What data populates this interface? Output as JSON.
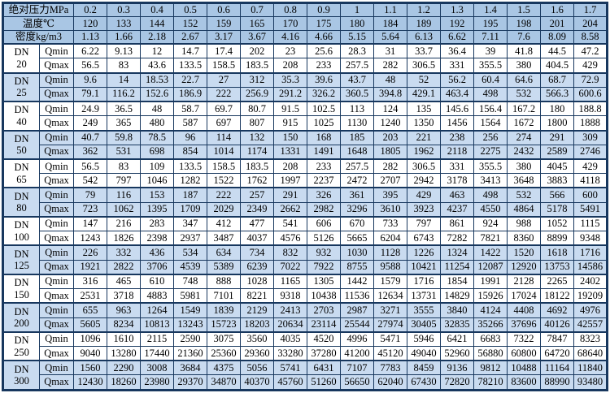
{
  "table": {
    "colors": {
      "border": "#17375e",
      "header_bg": "#a9c6e4",
      "block_bg": "#c9dbf0",
      "text": "#000000"
    },
    "dn_prefix": "DN",
    "qmin_label": "Qmin",
    "qmax_label": "Qmax",
    "header_rows": [
      {
        "key": "pressure",
        "label": "绝对压力MPa",
        "values": [
          "0.2",
          "0.3",
          "0.4",
          "0.5",
          "0.6",
          "0.7",
          "0.8",
          "0.9",
          "1",
          "1.1",
          "1.2",
          "1.3",
          "1.4",
          "1.5",
          "1.6",
          "1.7"
        ]
      },
      {
        "key": "temperature",
        "label": "温度℃",
        "values": [
          "120",
          "133",
          "144",
          "152",
          "159",
          "165",
          "170",
          "175",
          "180",
          "184",
          "189",
          "192",
          "195",
          "198",
          "201",
          "204"
        ]
      },
      {
        "key": "density",
        "label": "密度kg/m3",
        "values": [
          "1.13",
          "1.66",
          "2.18",
          "2.67",
          "3.17",
          "3.67",
          "4.16",
          "4.66",
          "5.15",
          "5.64",
          "6.13",
          "6.62",
          "7.11",
          "7.6",
          "8.09",
          "8.58"
        ]
      }
    ],
    "blocks": [
      {
        "dn": "20",
        "shaded": false,
        "qmin": [
          "6.22",
          "9.13",
          "12",
          "14.7",
          "17.4",
          "202",
          "23",
          "25.6",
          "28.3",
          "31",
          "33.7",
          "36.4",
          "39",
          "41.8",
          "44.5",
          "47.2"
        ],
        "qmax": [
          "56.5",
          "83",
          "43.6",
          "133.5",
          "158.5",
          "183.5",
          "208",
          "233",
          "257.5",
          "282",
          "306.5",
          "331",
          "355.5",
          "380",
          "404.5",
          "429"
        ]
      },
      {
        "dn": "25",
        "shaded": true,
        "qmin": [
          "9.6",
          "14",
          "18.53",
          "22.7",
          "27",
          "312",
          "35.3",
          "39.6",
          "43.7",
          "48",
          "52",
          "56.2",
          "60.4",
          "64.6",
          "68.7",
          "72.9"
        ],
        "qmax": [
          "79.1",
          "116.2",
          "152.6",
          "186.9",
          "222",
          "256.9",
          "291.2",
          "326.2",
          "360.5",
          "394.8",
          "429.1",
          "463.4",
          "498",
          "532",
          "566.3",
          "600.6"
        ]
      },
      {
        "dn": "40",
        "shaded": false,
        "qmin": [
          "24.9",
          "36.5",
          "48",
          "58.7",
          "69.7",
          "80.7",
          "91.5",
          "102.5",
          "113",
          "124",
          "135",
          "145.6",
          "156.4",
          "167.2",
          "180",
          "188.8"
        ],
        "qmax": [
          "249",
          "365",
          "480",
          "587",
          "697",
          "807",
          "915",
          "1025",
          "1130",
          "1240",
          "1350",
          "1456",
          "1564",
          "1672",
          "1800",
          "1888"
        ]
      },
      {
        "dn": "50",
        "shaded": true,
        "qmin": [
          "40.7",
          "59.8",
          "78.5",
          "96",
          "114",
          "132",
          "150",
          "168",
          "185",
          "203",
          "221",
          "238",
          "256",
          "274",
          "291",
          "309"
        ],
        "qmax": [
          "362",
          "531",
          "698",
          "854",
          "1014",
          "1174",
          "1331",
          "1491",
          "1648",
          "1805",
          "1962",
          "2118",
          "2275",
          "2432",
          "2589",
          "2746"
        ]
      },
      {
        "dn": "65",
        "shaded": false,
        "qmin": [
          "56.5",
          "83",
          "109",
          "133.5",
          "158.5",
          "183.5",
          "208",
          "233",
          "257.5",
          "282",
          "306.5",
          "331",
          "355.5",
          "380",
          "4045",
          "429"
        ],
        "qmax": [
          "542",
          "797",
          "1046",
          "1282",
          "1522",
          "1762",
          "1997",
          "2237",
          "2472",
          "2707",
          "2942",
          "3178",
          "3413",
          "3648",
          "3883",
          "4118"
        ]
      },
      {
        "dn": "80",
        "shaded": true,
        "qmin": [
          "79",
          "116",
          "153",
          "187",
          "222",
          "257",
          "291",
          "326",
          "361",
          "395",
          "429",
          "463",
          "498",
          "532",
          "566",
          "600"
        ],
        "qmax": [
          "723",
          "1062",
          "1395",
          "1709",
          "2029",
          "2349",
          "2662",
          "2982",
          "3296",
          "3610",
          "3923",
          "4237",
          "4550",
          "4864",
          "5178",
          "5491"
        ]
      },
      {
        "dn": "100",
        "shaded": false,
        "qmin": [
          "147",
          "216",
          "283",
          "347",
          "412",
          "477",
          "541",
          "606",
          "670",
          "733",
          "797",
          "861",
          "924",
          "988",
          "1052",
          "1115"
        ],
        "qmax": [
          "1243",
          "1826",
          "2398",
          "2937",
          "3487",
          "4037",
          "4576",
          "5126",
          "5665",
          "6204",
          "6743",
          "7282",
          "7821",
          "8360",
          "8899",
          "9348"
        ]
      },
      {
        "dn": "125",
        "shaded": true,
        "qmin": [
          "226",
          "332",
          "436",
          "534",
          "634",
          "734",
          "832",
          "932",
          "1030",
          "1128",
          "1226",
          "1324",
          "1422",
          "1520",
          "1618",
          "1716"
        ],
        "qmax": [
          "1921",
          "2822",
          "3706",
          "4539",
          "5389",
          "6239",
          "7022",
          "7922",
          "8755",
          "9588",
          "10421",
          "11254",
          "12087",
          "12920",
          "13753",
          "14586"
        ]
      },
      {
        "dn": "150",
        "shaded": false,
        "qmin": [
          "316",
          "465",
          "610",
          "748",
          "888",
          "1028",
          "1165",
          "1305",
          "1442",
          "1579",
          "1716",
          "1854",
          "1991",
          "2128",
          "2265",
          "2402"
        ],
        "qmax": [
          "2531",
          "3718",
          "4883",
          "5981",
          "7101",
          "8221",
          "9318",
          "10438",
          "11536",
          "12634",
          "13731",
          "14829",
          "15926",
          "17024",
          "18122",
          "19209"
        ]
      },
      {
        "dn": "200",
        "shaded": true,
        "qmin": [
          "655",
          "963",
          "1264",
          "1549",
          "1839",
          "2129",
          "2413",
          "2703",
          "2987",
          "3271",
          "3555",
          "3840",
          "4124",
          "4408",
          "4692",
          "4976"
        ],
        "qmax": [
          "5605",
          "8234",
          "10813",
          "13243",
          "15723",
          "18203",
          "20634",
          "23114",
          "25544",
          "27974",
          "30405",
          "32835",
          "35266",
          "37696",
          "40126",
          "42557"
        ]
      },
      {
        "dn": "250",
        "shaded": false,
        "qmin": [
          "1096",
          "1610",
          "2115",
          "2590",
          "3075",
          "3560",
          "4035",
          "4520",
          "4996",
          "5471",
          "5946",
          "6421",
          "6683",
          "7322",
          "7847",
          "8323"
        ],
        "qmax": [
          "9040",
          "13280",
          "17440",
          "21360",
          "25360",
          "29360",
          "33280",
          "37280",
          "41200",
          "45120",
          "49040",
          "52960",
          "56880",
          "60800",
          "64720",
          "68640"
        ]
      },
      {
        "dn": "300",
        "shaded": true,
        "qmin": [
          "1560",
          "2290",
          "3008",
          "3684",
          "4375",
          "5056",
          "5741",
          "6431",
          "7107",
          "7783",
          "8459",
          "9136",
          "9812",
          "10488",
          "11164",
          "11840"
        ],
        "qmax": [
          "12430",
          "18260",
          "23980",
          "29370",
          "34870",
          "40370",
          "45760",
          "51260",
          "56650",
          "62040",
          "67430",
          "72820",
          "78210",
          "83600",
          "88990",
          "93480"
        ]
      }
    ]
  }
}
